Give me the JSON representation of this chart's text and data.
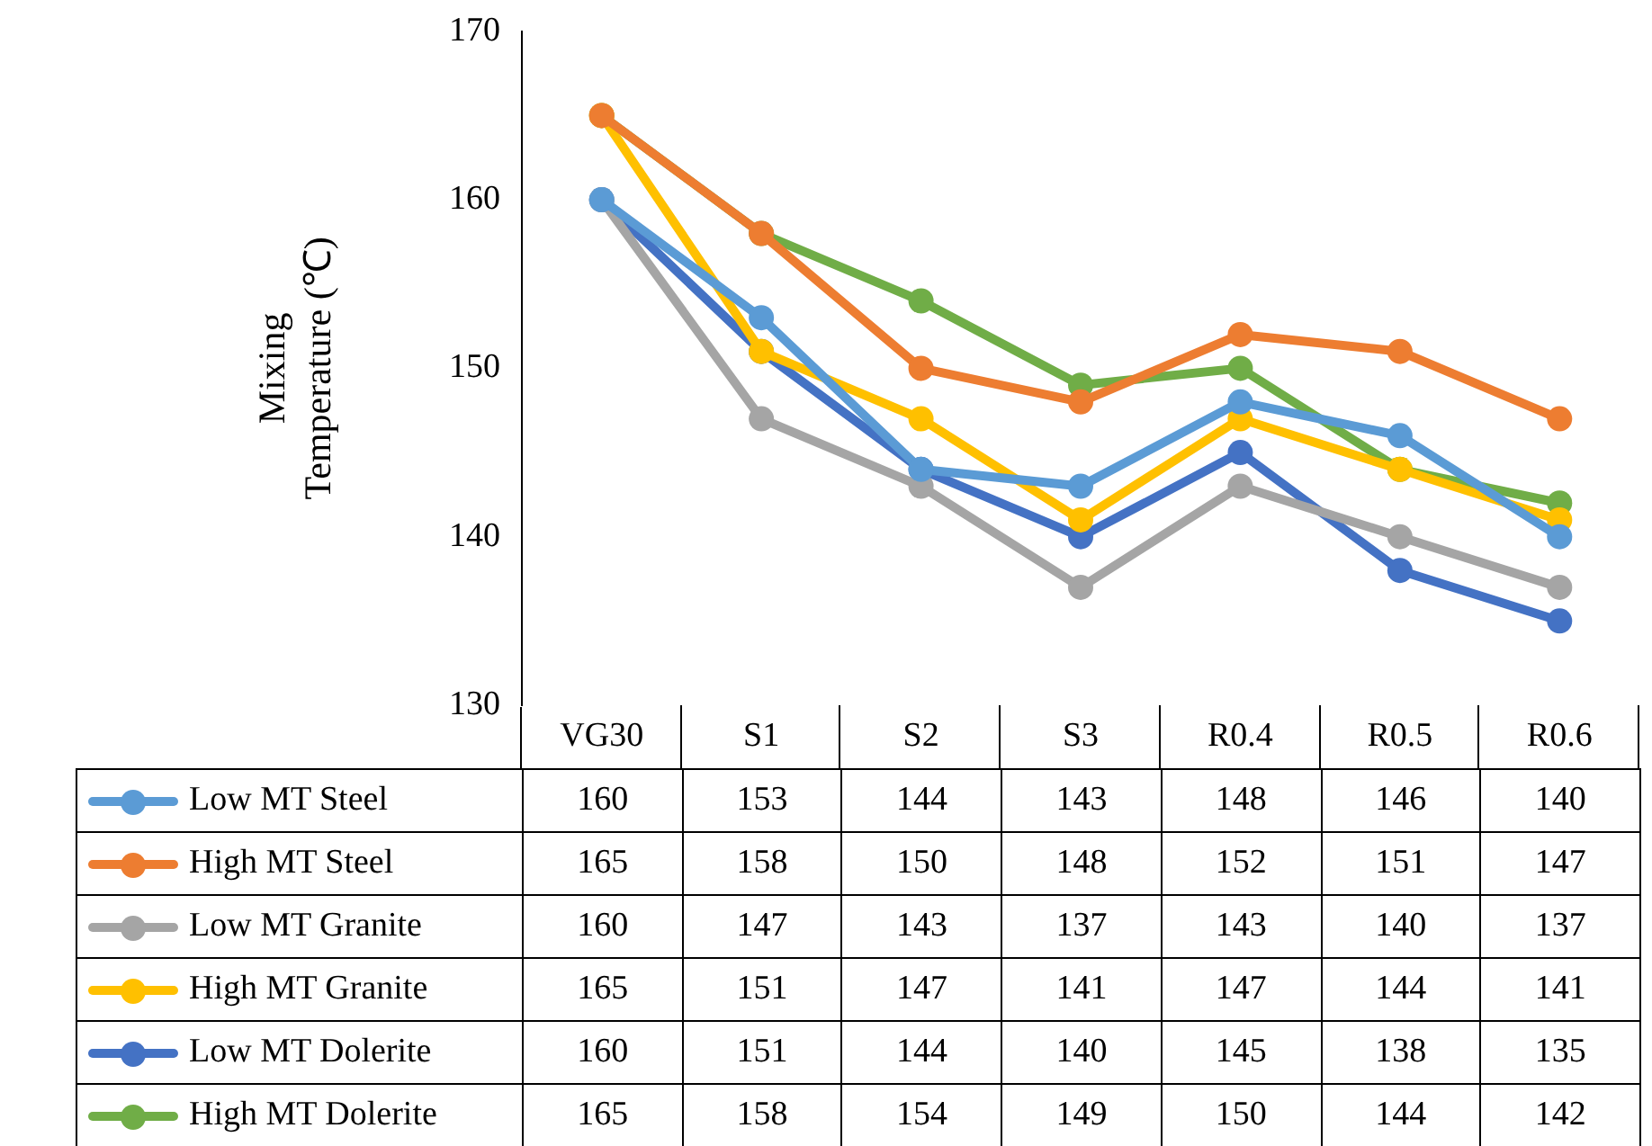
{
  "chart_data": {
    "type": "line",
    "ylabel": "Mixing\nTemperature (℃)",
    "categories": [
      "VG30",
      "S1",
      "S2",
      "S3",
      "R0.4",
      "R0.5",
      "R0.6"
    ],
    "series": [
      {
        "name": "Low MT Steel",
        "color": "#5b9bd5",
        "values": [
          160,
          153,
          144,
          143,
          148,
          146,
          140
        ]
      },
      {
        "name": "High MT Steel",
        "color": "#ed7d31",
        "values": [
          165,
          158,
          150,
          148,
          152,
          151,
          147
        ]
      },
      {
        "name": "Low MT Granite",
        "color": "#a5a5a5",
        "values": [
          160,
          147,
          143,
          137,
          143,
          140,
          137
        ]
      },
      {
        "name": "High MT Granite",
        "color": "#ffc000",
        "values": [
          165,
          151,
          147,
          141,
          147,
          144,
          141
        ]
      },
      {
        "name": "Low MT Dolerite",
        "color": "#4472c4",
        "values": [
          160,
          151,
          144,
          140,
          145,
          138,
          135
        ]
      },
      {
        "name": "High MT Dolerite",
        "color": "#70ad47",
        "values": [
          165,
          158,
          154,
          149,
          150,
          144,
          142
        ]
      }
    ],
    "ylim": [
      130,
      170
    ],
    "yticks": [
      130,
      140,
      150,
      160,
      170
    ],
    "grid": false,
    "legend": "bottom",
    "data_labels": true,
    "marker": "circle",
    "line_style": "solid"
  }
}
